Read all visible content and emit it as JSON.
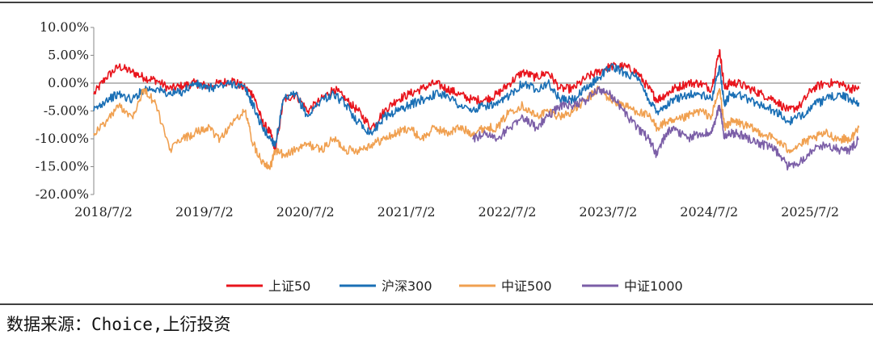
{
  "chart_data": {
    "type": "line",
    "title": "",
    "xlabel": "",
    "ylabel": "",
    "ylim": [
      -20,
      10
    ],
    "yticks": [
      10,
      5,
      0,
      -5,
      -10,
      -15,
      -20
    ],
    "ytick_labels": [
      "10.00%",
      "5.00%",
      "0.00%",
      "-5.00%",
      "-10.00%",
      "-15.00%",
      "-20.00%"
    ],
    "x_range": [
      2018.5,
      2026.1
    ],
    "xticks": [
      2018.5,
      2019.5,
      2020.5,
      2021.5,
      2022.5,
      2023.5,
      2024.5,
      2025.5
    ],
    "xtick_labels": [
      "2018/7/2",
      "2019/7/2",
      "2020/7/2",
      "2021/7/2",
      "2022/7/2",
      "2023/7/2",
      "2024/7/2",
      "2025/7/2"
    ],
    "grid": false,
    "legend_position": "bottom-center",
    "series": [
      {
        "name": "上证50",
        "color": "#e8141c",
        "x": [
          2018.5,
          2018.62,
          2018.75,
          2018.88,
          2019.0,
          2019.12,
          2019.25,
          2019.38,
          2019.5,
          2019.62,
          2019.75,
          2019.88,
          2020.0,
          2020.08,
          2020.17,
          2020.25,
          2020.3,
          2020.38,
          2020.5,
          2020.62,
          2020.75,
          2020.88,
          2021.0,
          2021.12,
          2021.25,
          2021.38,
          2021.5,
          2021.62,
          2021.75,
          2021.88,
          2022.0,
          2022.12,
          2022.25,
          2022.38,
          2022.5,
          2022.62,
          2022.75,
          2022.88,
          2023.0,
          2023.12,
          2023.25,
          2023.38,
          2023.5,
          2023.62,
          2023.75,
          2023.88,
          2024.0,
          2024.08,
          2024.17,
          2024.25,
          2024.38,
          2024.5,
          2024.62,
          2024.7,
          2024.75,
          2024.8,
          2024.88,
          2025.0,
          2025.12,
          2025.25,
          2025.38,
          2025.5,
          2025.62,
          2025.75,
          2025.88,
          2026.0,
          2026.08
        ],
        "values": [
          -2,
          1,
          3,
          2,
          1,
          0.5,
          -1,
          -0.5,
          0,
          -0.5,
          0,
          0.5,
          -1,
          -2,
          -7,
          -9,
          -12,
          -3,
          -2,
          -5,
          -3,
          -1,
          -3,
          -5,
          -8,
          -5,
          -3,
          -2,
          -1,
          0,
          -1,
          -2,
          -3,
          -3,
          -2,
          0,
          2,
          1,
          2,
          -1,
          -1,
          1,
          2,
          3,
          3,
          2,
          -1,
          -3,
          -2,
          -1,
          0,
          0,
          -1,
          6,
          -1,
          0,
          0,
          -1,
          -2,
          -3,
          -5,
          -4,
          -1,
          0,
          0,
          -1,
          -1
        ]
      },
      {
        "name": "沪深300",
        "color": "#1a6fb5",
        "x": [
          2018.5,
          2018.62,
          2018.75,
          2018.88,
          2019.0,
          2019.12,
          2019.25,
          2019.38,
          2019.5,
          2019.62,
          2019.75,
          2019.88,
          2020.0,
          2020.08,
          2020.17,
          2020.25,
          2020.3,
          2020.38,
          2020.5,
          2020.62,
          2020.75,
          2020.88,
          2021.0,
          2021.12,
          2021.25,
          2021.38,
          2021.5,
          2021.62,
          2021.75,
          2021.88,
          2022.0,
          2022.12,
          2022.25,
          2022.38,
          2022.5,
          2022.62,
          2022.75,
          2022.88,
          2023.0,
          2023.12,
          2023.25,
          2023.38,
          2023.5,
          2023.62,
          2023.75,
          2023.88,
          2024.0,
          2024.08,
          2024.17,
          2024.25,
          2024.38,
          2024.5,
          2024.62,
          2024.7,
          2024.75,
          2024.8,
          2024.88,
          2025.0,
          2025.12,
          2025.25,
          2025.38,
          2025.5,
          2025.62,
          2025.75,
          2025.88,
          2026.0,
          2026.08
        ],
        "values": [
          -5,
          -3,
          -2,
          -3,
          -1,
          -1,
          -2,
          -1.5,
          0,
          -1,
          -0.5,
          0,
          -1,
          -4,
          -8,
          -10,
          -11,
          -3,
          -2,
          -6,
          -3,
          -2,
          -4,
          -7,
          -9,
          -6,
          -5,
          -4,
          -3,
          -2,
          -2,
          -4,
          -5,
          -4,
          -4,
          -2,
          0,
          -1,
          0,
          -3,
          -3,
          -1,
          1,
          3,
          2,
          1,
          -3,
          -5,
          -4,
          -3,
          -2,
          -2,
          -3,
          3,
          -4,
          -2,
          -2,
          -3,
          -4,
          -5,
          -7,
          -6,
          -4,
          -3,
          -2,
          -3,
          -3.5
        ]
      },
      {
        "name": "中证500",
        "color": "#f0a050",
        "x": [
          2018.5,
          2018.62,
          2018.75,
          2018.88,
          2019.0,
          2019.12,
          2019.25,
          2019.38,
          2019.5,
          2019.62,
          2019.75,
          2019.88,
          2020.0,
          2020.08,
          2020.17,
          2020.25,
          2020.3,
          2020.38,
          2020.5,
          2020.62,
          2020.75,
          2020.88,
          2021.0,
          2021.12,
          2021.25,
          2021.38,
          2021.5,
          2021.62,
          2021.75,
          2021.88,
          2022.0,
          2022.12,
          2022.25,
          2022.38,
          2022.5,
          2022.62,
          2022.75,
          2022.88,
          2023.0,
          2023.12,
          2023.25,
          2023.38,
          2023.5,
          2023.62,
          2023.75,
          2023.88,
          2024.0,
          2024.08,
          2024.17,
          2024.25,
          2024.38,
          2024.5,
          2024.62,
          2024.7,
          2024.75,
          2024.8,
          2024.88,
          2025.0,
          2025.12,
          2025.25,
          2025.38,
          2025.5,
          2025.62,
          2025.75,
          2025.88,
          2026.0,
          2026.08
        ],
        "values": [
          -9,
          -7,
          -4,
          -6,
          -1,
          -4,
          -12,
          -10,
          -9,
          -8,
          -10,
          -7,
          -5,
          -11,
          -14,
          -15,
          -12,
          -13,
          -12,
          -11,
          -12,
          -10,
          -12,
          -12,
          -11,
          -10,
          -9,
          -8,
          -10,
          -8,
          -9,
          -8,
          -9,
          -8,
          -8,
          -5,
          -4,
          -6,
          -5,
          -6,
          -5,
          -3,
          -1,
          -3,
          -4,
          -5,
          -6,
          -8,
          -7,
          -7,
          -6,
          -5,
          -6,
          -1,
          -8,
          -7,
          -7,
          -8,
          -9,
          -10,
          -12,
          -11,
          -10,
          -9,
          -10,
          -10,
          -8
        ]
      },
      {
        "name": "中证1000",
        "color": "#7b5ea7",
        "x": [
          2022.25,
          2022.38,
          2022.5,
          2022.62,
          2022.75,
          2022.88,
          2023.0,
          2023.12,
          2023.25,
          2023.38,
          2023.5,
          2023.62,
          2023.75,
          2023.88,
          2024.0,
          2024.08,
          2024.17,
          2024.25,
          2024.38,
          2024.5,
          2024.62,
          2024.7,
          2024.75,
          2024.8,
          2024.88,
          2025.0,
          2025.12,
          2025.25,
          2025.38,
          2025.5,
          2025.62,
          2025.75,
          2025.88,
          2026.0,
          2026.08
        ],
        "values": [
          -10,
          -9,
          -10,
          -8,
          -6,
          -8,
          -6,
          -4,
          -4,
          -3,
          -1,
          -2,
          -5,
          -8,
          -10,
          -13,
          -9,
          -8,
          -10,
          -9,
          -9,
          -4,
          -10,
          -9,
          -9,
          -10,
          -11,
          -12,
          -15,
          -14,
          -12,
          -11,
          -12,
          -12,
          -10
        ]
      }
    ]
  },
  "legend": [
    {
      "label": "上证50",
      "color": "#e8141c"
    },
    {
      "label": "沪深300",
      "color": "#1a6fb5"
    },
    {
      "label": "中证500",
      "color": "#f0a050"
    },
    {
      "label": "中证1000",
      "color": "#7b5ea7"
    }
  ],
  "source_text": "数据来源：Choice,上衍投资"
}
